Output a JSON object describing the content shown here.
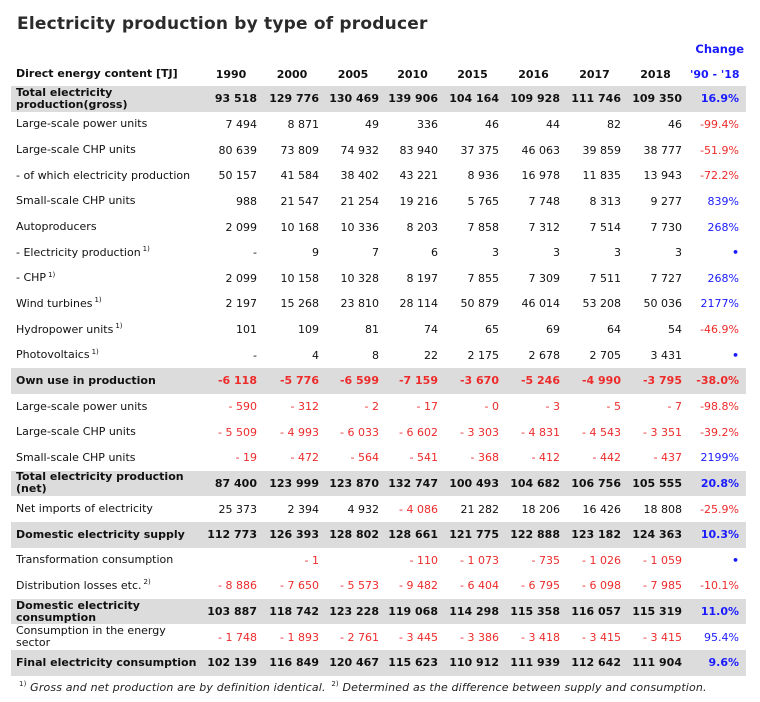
{
  "title": "Electricity production by type of producer",
  "change_header": "Change",
  "header": {
    "label": "Direct energy content [TJ]",
    "years": [
      "1990",
      "2000",
      "2005",
      "2010",
      "2015",
      "2016",
      "2017",
      "2018"
    ],
    "change": "'90 - '18"
  },
  "rows": [
    {
      "label": "Total electricity production(gross)",
      "sup": "",
      "values": [
        "93 518",
        "129 776",
        "130 469",
        "139 906",
        "104 164",
        "109 928",
        "111 746",
        "109 350"
      ],
      "change": "16.9%",
      "change_color": "blue",
      "style": "shaded",
      "negative": false
    },
    {
      "label": "Large-scale power units",
      "sup": "",
      "values": [
        "7 494",
        "8 871",
        "49",
        "336",
        "46",
        "44",
        "82",
        "46"
      ],
      "change": "-99.4%",
      "change_color": "red",
      "style": "normal",
      "negative": false
    },
    {
      "label": "Large-scale CHP units",
      "sup": "",
      "values": [
        "80 639",
        "73 809",
        "74 932",
        "83 940",
        "37 375",
        "46 063",
        "39 859",
        "38 777"
      ],
      "change": "-51.9%",
      "change_color": "red",
      "style": "normal",
      "negative": false
    },
    {
      "label": "- of which electricity production",
      "sup": "",
      "values": [
        "50 157",
        "41 584",
        "38 402",
        "43 221",
        "8 936",
        "16 978",
        "11 835",
        "13 943"
      ],
      "change": "-72.2%",
      "change_color": "red",
      "style": "normal",
      "negative": false
    },
    {
      "label": "Small-scale CHP units",
      "sup": "",
      "values": [
        "988",
        "21 547",
        "21 254",
        "19 216",
        "5 765",
        "7 748",
        "8 313",
        "9 277"
      ],
      "change": "839%",
      "change_color": "blue",
      "style": "normal",
      "negative": false
    },
    {
      "label": "Autoproducers",
      "sup": "",
      "values": [
        "2 099",
        "10 168",
        "10 336",
        "8 203",
        "7 858",
        "7 312",
        "7 514",
        "7 730"
      ],
      "change": "268%",
      "change_color": "blue",
      "style": "normal",
      "negative": false
    },
    {
      "label": "- Electricity production",
      "sup": "1)",
      "values": [
        "-",
        "9",
        "7",
        "6",
        "3",
        "3",
        "3",
        "3"
      ],
      "change": "•",
      "change_color": "blue",
      "style": "normal",
      "negative": false
    },
    {
      "label": "- CHP",
      "sup": "1)",
      "values": [
        "2 099",
        "10 158",
        "10 328",
        "8 197",
        "7 855",
        "7 309",
        "7 511",
        "7 727"
      ],
      "change": "268%",
      "change_color": "blue",
      "style": "normal",
      "negative": false
    },
    {
      "label": "Wind turbines",
      "sup": "1)",
      "values": [
        "2 197",
        "15 268",
        "23 810",
        "28 114",
        "50 879",
        "46 014",
        "53 208",
        "50 036"
      ],
      "change": "2177%",
      "change_color": "blue",
      "style": "normal",
      "negative": false
    },
    {
      "label": "Hydropower units",
      "sup": "1)",
      "values": [
        "101",
        "109",
        "81",
        "74",
        "65",
        "69",
        "64",
        "54"
      ],
      "change": "-46.9%",
      "change_color": "red",
      "style": "normal",
      "negative": false
    },
    {
      "label": "Photovoltaics",
      "sup": "1)",
      "values": [
        "-",
        "4",
        "8",
        "22",
        "2 175",
        "2 678",
        "2 705",
        "3 431"
      ],
      "change": "•",
      "change_color": "blue",
      "style": "normal",
      "negative": false
    },
    {
      "label": "Own use in production",
      "sup": "",
      "values": [
        "-6 118",
        "-5 776",
        "-6 599",
        "-7 159",
        "-3 670",
        "-5 246",
        "-4 990",
        "-3 795"
      ],
      "change": "-38.0%",
      "change_color": "red",
      "style": "shaded",
      "negative": true
    },
    {
      "label": "Large-scale power units",
      "sup": "",
      "values": [
        "- 590",
        "- 312",
        "- 2",
        "- 17",
        "- 0",
        "- 3",
        "- 5",
        "- 7"
      ],
      "change": "-98.8%",
      "change_color": "red",
      "style": "normal",
      "negative": true
    },
    {
      "label": "Large-scale CHP units",
      "sup": "",
      "values": [
        "- 5 509",
        "- 4 993",
        "- 6 033",
        "- 6 602",
        "- 3 303",
        "- 4 831",
        "- 4 543",
        "- 3 351"
      ],
      "change": "-39.2%",
      "change_color": "red",
      "style": "normal",
      "negative": true
    },
    {
      "label": "Small-scale CHP units",
      "sup": "",
      "values": [
        "- 19",
        "- 472",
        "- 564",
        "- 541",
        "- 368",
        "- 412",
        "- 442",
        "- 437"
      ],
      "change": "2199%",
      "change_color": "blue",
      "style": "normal",
      "negative": true
    },
    {
      "label": "Total electricity production (net)",
      "sup": "",
      "values": [
        "87 400",
        "123 999",
        "123 870",
        "132 747",
        "100 493",
        "104 682",
        "106 756",
        "105 555"
      ],
      "change": "20.8%",
      "change_color": "blue",
      "style": "shaded",
      "negative": false
    },
    {
      "label": "Net imports of electricity",
      "sup": "",
      "values": [
        "25 373",
        "2 394",
        "4 932",
        "- 4 086",
        "21 282",
        "18 206",
        "16 426",
        "18 808"
      ],
      "change": "-25.9%",
      "change_color": "red",
      "style": "normal",
      "negative": false,
      "negative_cols": [
        3
      ]
    },
    {
      "label": "Domestic electricity supply",
      "sup": "",
      "values": [
        "112 773",
        "126 393",
        "128 802",
        "128 661",
        "121 775",
        "122 888",
        "123 182",
        "124 363"
      ],
      "change": "10.3%",
      "change_color": "blue",
      "style": "shaded",
      "negative": false
    },
    {
      "label": "Transformation consumption",
      "sup": "",
      "values": [
        "",
        "- 1",
        "",
        "- 110",
        "- 1 073",
        "- 735",
        "- 1 026",
        "- 1 059"
      ],
      "change": "•",
      "change_color": "blue",
      "style": "normal",
      "negative": true
    },
    {
      "label": "Distribution losses etc.",
      "sup": "2)",
      "values": [
        "- 8 886",
        "- 7 650",
        "- 5 573",
        "- 9 482",
        "- 6 404",
        "- 6 795",
        "- 6 098",
        "- 7 985"
      ],
      "change": "-10.1%",
      "change_color": "red",
      "style": "normal",
      "negative": true
    },
    {
      "label": "Domestic electricity consumption",
      "sup": "",
      "values": [
        "103 887",
        "118 742",
        "123 228",
        "119 068",
        "114 298",
        "115 358",
        "116 057",
        "115 319"
      ],
      "change": "11.0%",
      "change_color": "blue",
      "style": "shaded",
      "negative": false
    },
    {
      "label": "Consumption in the energy sector",
      "sup": "",
      "values": [
        "- 1 748",
        "- 1 893",
        "- 2 761",
        "- 3 445",
        "- 3 386",
        "- 3 418",
        "- 3 415",
        "- 3 415"
      ],
      "change": "95.4%",
      "change_color": "blue",
      "style": "normal",
      "negative": true
    },
    {
      "label": "Final electricity consumption",
      "sup": "",
      "values": [
        "102 139",
        "116 849",
        "120 467",
        "115 623",
        "110 912",
        "111 939",
        "112 642",
        "111 904"
      ],
      "change": "9.6%",
      "change_color": "blue",
      "style": "shaded",
      "negative": false
    }
  ],
  "footnote": {
    "sup1": "1)",
    "text1": " Gross and net production are by definition identical. ",
    "sup2": "2)",
    "text2": " Determined as the difference between supply and consumption."
  }
}
